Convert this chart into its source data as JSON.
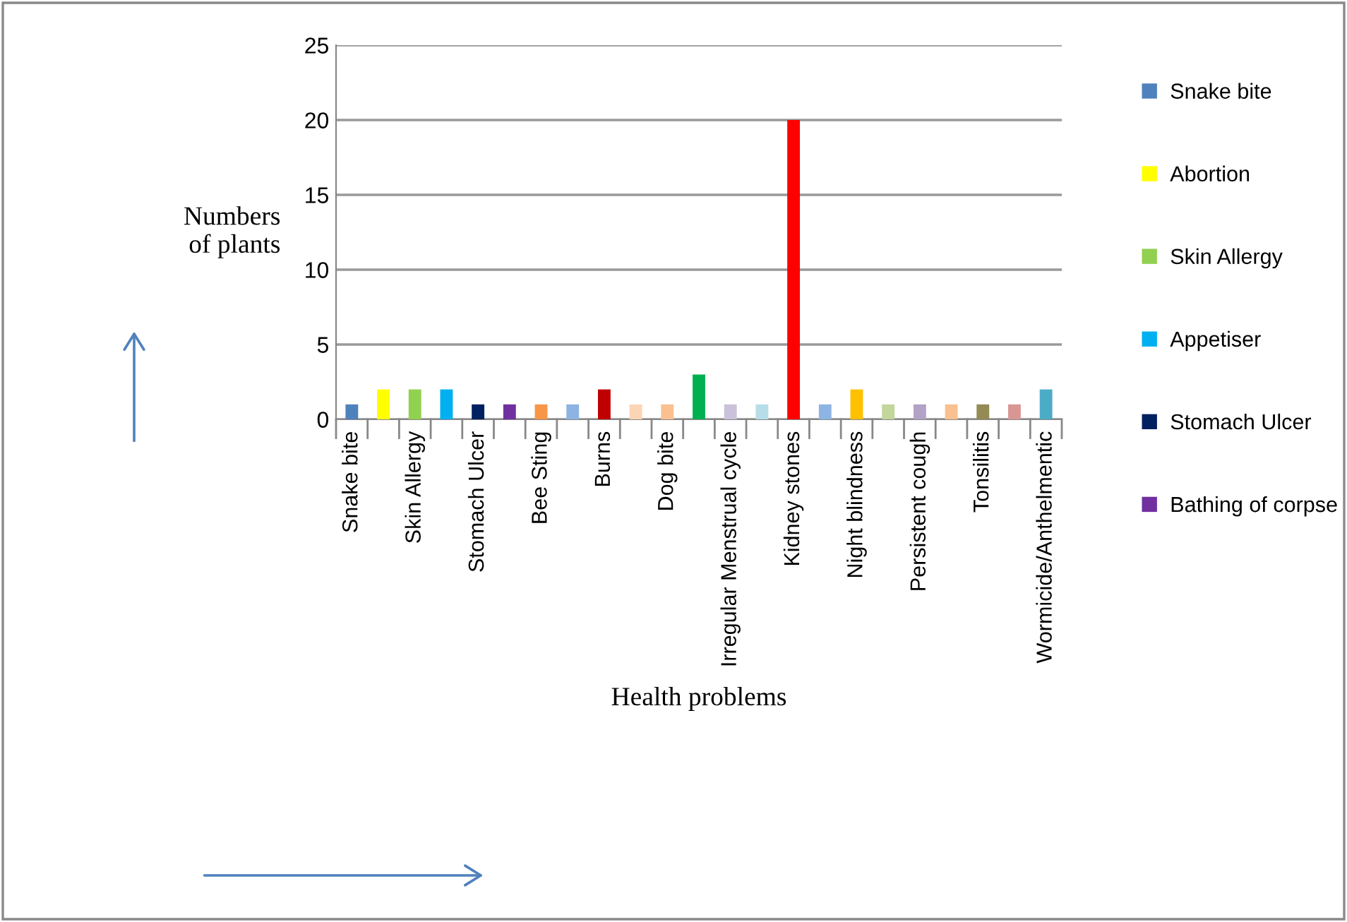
{
  "chart_data": {
    "type": "bar",
    "xlabel": "Health problems",
    "ylabel": "Numbers of plants",
    "categories": [
      "Snake bite",
      null,
      "Skin Allergy",
      null,
      "Stomach Ulcer",
      null,
      "Bee Sting",
      null,
      "Burns",
      null,
      "Dog bite",
      null,
      "Irregular Menstrual cycle",
      null,
      "Kidney stones",
      null,
      "Night blindness",
      null,
      "Persistent cough",
      null,
      "Tonsilitis",
      null,
      "Wormicide/Anthelmentic"
    ],
    "series": [
      {
        "name": "Snake bite",
        "color": "#4f81bd",
        "values": [
          1,
          null,
          null,
          null,
          null,
          null,
          null,
          null,
          null,
          null,
          null,
          null,
          null,
          null,
          null,
          null,
          null,
          null,
          null,
          null,
          null,
          null,
          null
        ]
      },
      {
        "name": "Abortion",
        "color": "#ffff00",
        "values": [
          null,
          2,
          null,
          null,
          null,
          null,
          null,
          null,
          null,
          null,
          null,
          null,
          null,
          null,
          null,
          null,
          null,
          null,
          null,
          null,
          null,
          null,
          null
        ]
      },
      {
        "name": "Skin Allergy",
        "color": "#92d050",
        "values": [
          null,
          null,
          2,
          null,
          null,
          null,
          null,
          null,
          null,
          null,
          null,
          null,
          null,
          null,
          null,
          null,
          null,
          null,
          null,
          null,
          null,
          null,
          null
        ]
      },
      {
        "name": "Appetiser",
        "color": "#00b0f0",
        "values": [
          null,
          null,
          null,
          2,
          null,
          null,
          null,
          null,
          null,
          null,
          null,
          null,
          null,
          null,
          null,
          null,
          null,
          null,
          null,
          null,
          null,
          null,
          null
        ]
      },
      {
        "name": "Stomach Ulcer",
        "color": "#002060",
        "values": [
          null,
          null,
          null,
          null,
          1,
          null,
          null,
          null,
          null,
          null,
          null,
          null,
          null,
          null,
          null,
          null,
          null,
          null,
          null,
          null,
          null,
          null,
          null
        ]
      },
      {
        "name": "Bathing of corpse",
        "color": "#7030a0",
        "values": [
          null,
          null,
          null,
          null,
          null,
          1,
          null,
          null,
          null,
          null,
          null,
          null,
          null,
          null,
          null,
          null,
          null,
          null,
          null,
          null,
          null,
          null,
          null
        ]
      },
      {
        "color": "#f79646",
        "values": [
          null,
          null,
          null,
          null,
          null,
          null,
          1,
          null,
          null,
          null,
          null,
          null,
          null,
          null,
          null,
          null,
          null,
          null,
          null,
          null,
          null,
          null,
          null
        ]
      },
      {
        "color": "#8db3e2",
        "values": [
          null,
          null,
          null,
          null,
          null,
          null,
          null,
          1,
          null,
          null,
          null,
          null,
          null,
          null,
          null,
          null,
          null,
          null,
          null,
          null,
          null,
          null,
          null
        ]
      },
      {
        "color": "#c00000",
        "values": [
          null,
          null,
          null,
          null,
          null,
          null,
          null,
          null,
          2,
          null,
          null,
          null,
          null,
          null,
          null,
          null,
          null,
          null,
          null,
          null,
          null,
          null,
          null
        ]
      },
      {
        "color": "#fcd5b5",
        "values": [
          null,
          null,
          null,
          null,
          null,
          null,
          null,
          null,
          null,
          1,
          null,
          null,
          null,
          null,
          null,
          null,
          null,
          null,
          null,
          null,
          null,
          null,
          null
        ]
      },
      {
        "color": "#fac090",
        "values": [
          null,
          null,
          null,
          null,
          null,
          null,
          null,
          null,
          null,
          null,
          1,
          null,
          null,
          null,
          null,
          null,
          null,
          null,
          null,
          null,
          null,
          null,
          null
        ]
      },
      {
        "color": "#00b050",
        "values": [
          null,
          null,
          null,
          null,
          null,
          null,
          null,
          null,
          null,
          null,
          null,
          3,
          null,
          null,
          null,
          null,
          null,
          null,
          null,
          null,
          null,
          null,
          null
        ]
      },
      {
        "color": "#ccc1da",
        "values": [
          null,
          null,
          null,
          null,
          null,
          null,
          null,
          null,
          null,
          null,
          null,
          null,
          1,
          null,
          null,
          null,
          null,
          null,
          null,
          null,
          null,
          null,
          null
        ]
      },
      {
        "color": "#b7dde8",
        "values": [
          null,
          null,
          null,
          null,
          null,
          null,
          null,
          null,
          null,
          null,
          null,
          null,
          null,
          1,
          null,
          null,
          null,
          null,
          null,
          null,
          null,
          null,
          null
        ]
      },
      {
        "color": "#ff0000",
        "values": [
          null,
          null,
          null,
          null,
          null,
          null,
          null,
          null,
          null,
          null,
          null,
          null,
          null,
          null,
          20,
          null,
          null,
          null,
          null,
          null,
          null,
          null,
          null
        ]
      },
      {
        "color": "#8eb4e3",
        "values": [
          null,
          null,
          null,
          null,
          null,
          null,
          null,
          null,
          null,
          null,
          null,
          null,
          null,
          null,
          null,
          1,
          null,
          null,
          null,
          null,
          null,
          null,
          null
        ]
      },
      {
        "color": "#ffc000",
        "values": [
          null,
          null,
          null,
          null,
          null,
          null,
          null,
          null,
          null,
          null,
          null,
          null,
          null,
          null,
          null,
          null,
          2,
          null,
          null,
          null,
          null,
          null,
          null
        ]
      },
      {
        "color": "#c3d69b",
        "values": [
          null,
          null,
          null,
          null,
          null,
          null,
          null,
          null,
          null,
          null,
          null,
          null,
          null,
          null,
          null,
          null,
          null,
          1,
          null,
          null,
          null,
          null,
          null
        ]
      },
      {
        "color": "#b3a2c7",
        "values": [
          null,
          null,
          null,
          null,
          null,
          null,
          null,
          null,
          null,
          null,
          null,
          null,
          null,
          null,
          null,
          null,
          null,
          null,
          1,
          null,
          null,
          null,
          null
        ]
      },
      {
        "color": "#fac08f",
        "values": [
          null,
          null,
          null,
          null,
          null,
          null,
          null,
          null,
          null,
          null,
          null,
          null,
          null,
          null,
          null,
          null,
          null,
          null,
          null,
          1,
          null,
          null,
          null
        ]
      },
      {
        "color": "#948a54",
        "values": [
          null,
          null,
          null,
          null,
          null,
          null,
          null,
          null,
          null,
          null,
          null,
          null,
          null,
          null,
          null,
          null,
          null,
          null,
          null,
          null,
          1,
          null,
          null
        ]
      },
      {
        "color": "#d99694",
        "values": [
          null,
          null,
          null,
          null,
          null,
          null,
          null,
          null,
          null,
          null,
          null,
          null,
          null,
          null,
          null,
          null,
          null,
          null,
          null,
          null,
          null,
          1,
          null
        ]
      },
      {
        "color": "#4bacc6",
        "values": [
          null,
          null,
          null,
          null,
          null,
          null,
          null,
          null,
          null,
          null,
          null,
          null,
          null,
          null,
          null,
          null,
          null,
          null,
          null,
          null,
          null,
          null,
          2
        ]
      }
    ],
    "ylim": [
      0,
      25
    ],
    "yticks": [
      0,
      5,
      10,
      15,
      20,
      25
    ],
    "grid": "y",
    "legend": "right"
  }
}
